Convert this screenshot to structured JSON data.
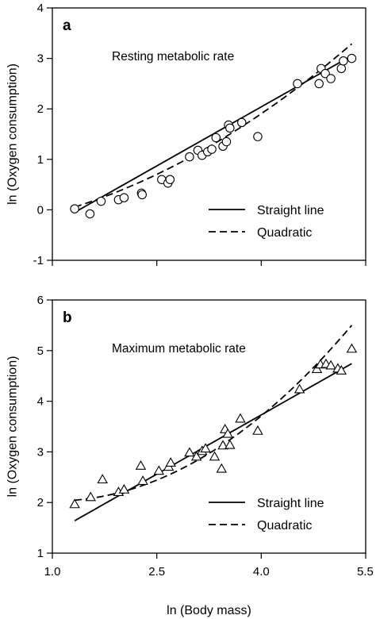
{
  "chart_data": [
    {
      "type": "scatter",
      "panel_label": "a",
      "title": "Resting metabolic rate",
      "xlabel": "",
      "ylabel": "ln (Oxygen consumption)",
      "xlim": [
        1.0,
        5.5
      ],
      "ylim": [
        -1,
        4
      ],
      "y_ticks": [
        -1,
        0,
        1,
        2,
        3,
        4
      ],
      "y_tick_labels": [
        "-1",
        "0",
        "1",
        "2",
        "3",
        "4"
      ],
      "x_ticks": [
        1.0,
        2.5,
        4.0,
        5.5
      ],
      "grid": false,
      "legend_position": "bottom-right",
      "marker": "circle",
      "points": [
        [
          1.32,
          0.02
        ],
        [
          1.54,
          -0.08
        ],
        [
          1.7,
          0.17
        ],
        [
          1.95,
          0.2
        ],
        [
          2.03,
          0.24
        ],
        [
          2.28,
          0.33
        ],
        [
          2.29,
          0.3
        ],
        [
          2.57,
          0.6
        ],
        [
          2.66,
          0.53
        ],
        [
          2.69,
          0.6
        ],
        [
          2.97,
          1.05
        ],
        [
          3.09,
          1.18
        ],
        [
          3.15,
          1.08
        ],
        [
          3.23,
          1.15
        ],
        [
          3.29,
          1.2
        ],
        [
          3.35,
          1.43
        ],
        [
          3.45,
          1.26
        ],
        [
          3.5,
          1.35
        ],
        [
          3.53,
          1.68
        ],
        [
          3.55,
          1.62
        ],
        [
          3.72,
          1.73
        ],
        [
          3.95,
          1.45
        ],
        [
          4.52,
          2.5
        ],
        [
          4.83,
          2.5
        ],
        [
          4.86,
          2.8
        ],
        [
          4.92,
          2.7
        ],
        [
          5.0,
          2.6
        ],
        [
          5.15,
          2.8
        ],
        [
          5.18,
          2.95
        ],
        [
          5.3,
          3.0
        ]
      ],
      "fits": [
        {
          "name": "Straight line",
          "style": "solid",
          "x_range": [
            1.32,
            5.3
          ],
          "coefficients": [
            -1.08,
            0.78
          ]
        },
        {
          "name": "Quadratic",
          "style": "dashed",
          "x_range": [
            1.32,
            5.3
          ],
          "coefficients": [
            -0.36,
            0.19,
            0.094
          ]
        }
      ]
    },
    {
      "type": "scatter",
      "panel_label": "b",
      "title": "Maximum metabolic rate",
      "xlabel": "ln (Body mass)",
      "ylabel": "ln (Oxygen consumption)",
      "xlim": [
        1.0,
        5.5
      ],
      "ylim": [
        1,
        6
      ],
      "y_ticks": [
        1,
        2,
        3,
        4,
        5,
        6
      ],
      "y_tick_labels": [
        "1",
        "2",
        "3",
        "4",
        "5",
        "6"
      ],
      "x_ticks": [
        1.0,
        2.5,
        4.0,
        5.5
      ],
      "x_tick_labels": [
        "1.0",
        "2.5",
        "4.0",
        "5.5"
      ],
      "grid": false,
      "legend_position": "bottom-right",
      "marker": "triangle",
      "points": [
        [
          1.32,
          1.96
        ],
        [
          1.55,
          2.1
        ],
        [
          1.72,
          2.45
        ],
        [
          1.95,
          2.2
        ],
        [
          2.03,
          2.25
        ],
        [
          2.27,
          2.72
        ],
        [
          2.3,
          2.42
        ],
        [
          2.53,
          2.62
        ],
        [
          2.67,
          2.7
        ],
        [
          2.7,
          2.78
        ],
        [
          2.97,
          2.98
        ],
        [
          3.07,
          2.9
        ],
        [
          3.15,
          3.01
        ],
        [
          3.2,
          3.06
        ],
        [
          3.33,
          2.9
        ],
        [
          3.43,
          2.66
        ],
        [
          3.45,
          3.12
        ],
        [
          3.48,
          3.44
        ],
        [
          3.52,
          3.35
        ],
        [
          3.55,
          3.13
        ],
        [
          3.7,
          3.65
        ],
        [
          3.95,
          3.41
        ],
        [
          4.55,
          4.23
        ],
        [
          4.8,
          4.63
        ],
        [
          4.85,
          4.72
        ],
        [
          4.93,
          4.73
        ],
        [
          5.0,
          4.7
        ],
        [
          5.1,
          4.64
        ],
        [
          5.15,
          4.6
        ],
        [
          5.3,
          5.03
        ]
      ],
      "fits": [
        {
          "name": "Straight line",
          "style": "solid",
          "x_range": [
            1.32,
            5.3
          ],
          "coefficients": [
            0.61,
            0.78
          ]
        },
        {
          "name": "Quadratic",
          "style": "dashed",
          "x_range": [
            1.32,
            5.3
          ],
          "coefficients": [
            2.23,
            -0.39,
            0.19
          ]
        }
      ]
    }
  ]
}
